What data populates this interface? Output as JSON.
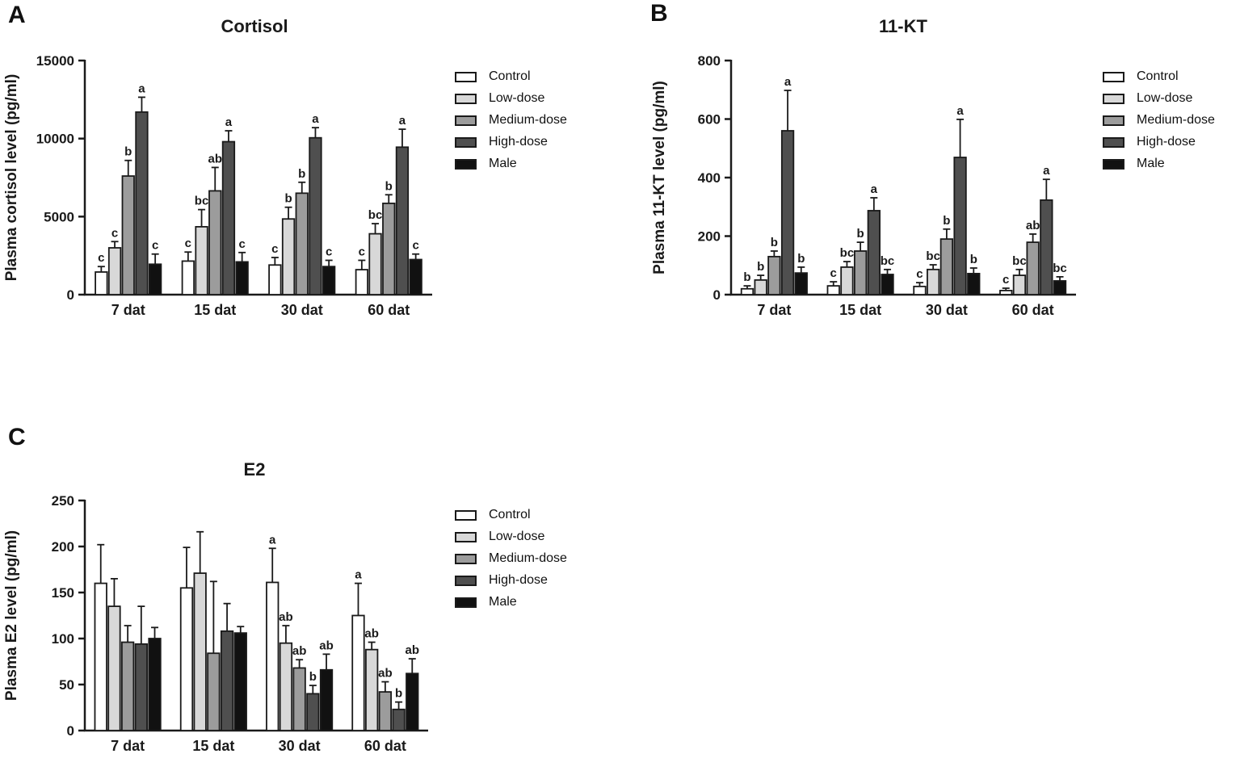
{
  "figure": {
    "background": "#ffffff",
    "axis_color": "#1a1a1a"
  },
  "panels": [
    {
      "label": "A"
    },
    {
      "label": "B"
    },
    {
      "label": "C"
    }
  ],
  "chart_data": [
    {
      "type": "bar",
      "panel": "A",
      "title": "Cortisol",
      "xlabel": "",
      "ylabel": "Plasma cortisol level (pg/ml)",
      "ylim": [
        0,
        15000
      ],
      "yticks": [
        0,
        5000,
        10000,
        15000
      ],
      "categories": [
        "7 dat",
        "15 dat",
        "30 dat",
        "60 dat"
      ],
      "grid": false,
      "legend_position": "right",
      "error_bars": "sd-upper",
      "series": [
        {
          "name": "Control",
          "color": "#ffffff",
          "values": [
            1450,
            2150,
            1900,
            1600
          ],
          "errors": [
            350,
            580,
            480,
            600
          ],
          "letters": [
            "c",
            "c",
            "c",
            "c"
          ]
        },
        {
          "name": "Low-dose",
          "color": "#d8d8d8",
          "values": [
            3000,
            4350,
            4850,
            3900
          ],
          "errors": [
            400,
            1100,
            750,
            650
          ],
          "letters": [
            "c",
            "bc",
            "b",
            "bc"
          ]
        },
        {
          "name": "Medium-dose",
          "color": "#9c9c9c",
          "values": [
            7600,
            6650,
            6500,
            5850
          ],
          "errors": [
            1000,
            1500,
            700,
            550
          ],
          "letters": [
            "b",
            "ab",
            "b",
            "b"
          ]
        },
        {
          "name": "High-dose",
          "color": "#4f4f4f",
          "values": [
            11700,
            9800,
            10050,
            9450
          ],
          "errors": [
            950,
            700,
            650,
            1150
          ],
          "letters": [
            "a",
            "a",
            "a",
            "a"
          ]
        },
        {
          "name": "Male",
          "color": "#111111",
          "values": [
            1950,
            2100,
            1800,
            2250
          ],
          "errors": [
            650,
            600,
            400,
            350
          ],
          "letters": [
            "c",
            "c",
            "c",
            "c"
          ]
        }
      ]
    },
    {
      "type": "bar",
      "panel": "B",
      "title": "11-KT",
      "xlabel": "",
      "ylabel": "Plasma 11-KT level (pg/ml)",
      "ylim": [
        0,
        800
      ],
      "yticks": [
        0,
        200,
        400,
        600,
        800
      ],
      "categories": [
        "7 dat",
        "15 dat",
        "30 dat",
        "60 dat"
      ],
      "grid": false,
      "legend_position": "right",
      "error_bars": "sd-upper",
      "series": [
        {
          "name": "Control",
          "color": "#ffffff",
          "values": [
            20,
            30,
            28,
            14
          ],
          "errors": [
            10,
            14,
            13,
            8
          ],
          "letters": [
            "b",
            "c",
            "c",
            "c"
          ]
        },
        {
          "name": "Low-dose",
          "color": "#d8d8d8",
          "values": [
            50,
            94,
            86,
            66
          ],
          "errors": [
            16,
            19,
            16,
            20
          ],
          "letters": [
            "b",
            "bc",
            "bc",
            "bc"
          ]
        },
        {
          "name": "Medium-dose",
          "color": "#9c9c9c",
          "values": [
            130,
            149,
            190,
            179
          ],
          "errors": [
            19,
            30,
            34,
            28
          ],
          "letters": [
            "b",
            "b",
            "b",
            "ab"
          ]
        },
        {
          "name": "High-dose",
          "color": "#4f4f4f",
          "values": [
            560,
            287,
            469,
            323
          ],
          "errors": [
            138,
            44,
            130,
            71
          ],
          "letters": [
            "a",
            "a",
            "a",
            "a"
          ]
        },
        {
          "name": "Male",
          "color": "#111111",
          "values": [
            74,
            69,
            72,
            47
          ],
          "errors": [
            20,
            17,
            19,
            14
          ],
          "letters": [
            "b",
            "bc",
            "b",
            "bc"
          ]
        }
      ]
    },
    {
      "type": "bar",
      "panel": "C",
      "title": "E2",
      "xlabel": "",
      "ylabel": "Plasma E2 level (pg/ml)",
      "ylim": [
        0,
        250
      ],
      "yticks": [
        0,
        50,
        100,
        150,
        200,
        250
      ],
      "categories": [
        "7 dat",
        "15 dat",
        "30 dat",
        "60 dat"
      ],
      "grid": false,
      "legend_position": "right",
      "error_bars": "sd-upper",
      "series": [
        {
          "name": "Control",
          "color": "#ffffff",
          "values": [
            160,
            155,
            161,
            125
          ],
          "errors": [
            42,
            44,
            37,
            35
          ],
          "letters": [
            "",
            "",
            "a",
            "a"
          ]
        },
        {
          "name": "Low-dose",
          "color": "#d8d8d8",
          "values": [
            135,
            171,
            95,
            88
          ],
          "errors": [
            30,
            45,
            19,
            8
          ],
          "letters": [
            "",
            "",
            "ab",
            "ab"
          ]
        },
        {
          "name": "Medium-dose",
          "color": "#9c9c9c",
          "values": [
            96,
            84,
            68,
            42
          ],
          "errors": [
            18,
            78,
            9,
            11
          ],
          "letters": [
            "",
            "",
            "ab",
            "ab"
          ]
        },
        {
          "name": "High-dose",
          "color": "#4f4f4f",
          "values": [
            94,
            108,
            40,
            23
          ],
          "errors": [
            41,
            30,
            9,
            8
          ],
          "letters": [
            "",
            "",
            "b",
            "b"
          ]
        },
        {
          "name": "Male",
          "color": "#111111",
          "values": [
            100,
            106,
            66,
            62
          ],
          "errors": [
            12,
            7,
            17,
            16
          ],
          "letters": [
            "",
            "",
            "ab",
            "ab"
          ]
        }
      ]
    }
  ]
}
